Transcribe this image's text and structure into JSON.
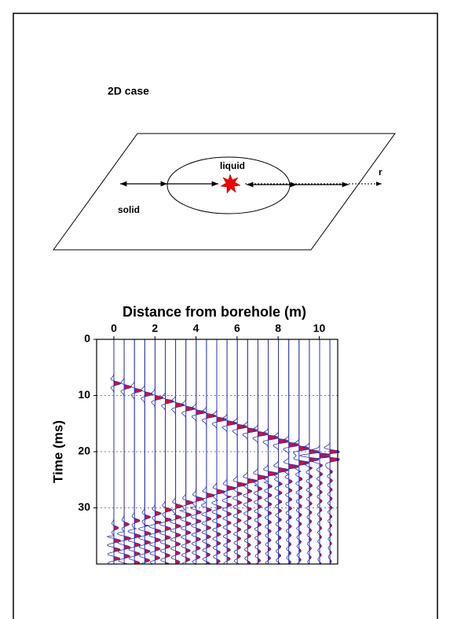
{
  "diagram": {
    "title": "2D case",
    "inner_label": "liquid",
    "outer_label": "solid",
    "axis_label": "r"
  },
  "plot": {
    "x_label": "Distance from borehole (m)",
    "y_label": "Time (ms)",
    "xlim": [
      -0.84,
      10.9
    ],
    "ylim": [
      0,
      40
    ],
    "xticks": [
      0,
      2,
      4,
      6,
      8,
      10
    ],
    "yticks": [
      0,
      10,
      20,
      30
    ],
    "grid": true
  }
}
